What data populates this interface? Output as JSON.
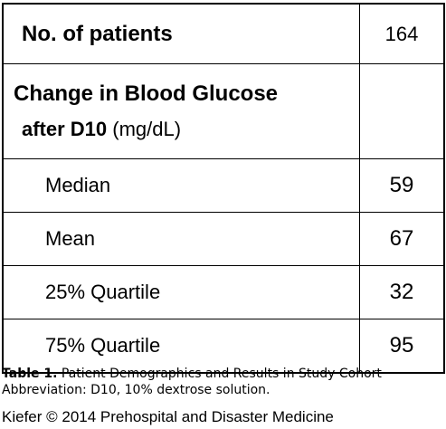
{
  "table": {
    "patients": {
      "label": "No. of patients",
      "value": "164"
    },
    "header": {
      "line1": "Change in Blood Glucose",
      "line2_bold": "after D10",
      "line2_unit": " (mg/dL)",
      "value": ""
    },
    "rows": [
      {
        "label": "Median",
        "value": "59"
      },
      {
        "label": "Mean",
        "value": "67"
      },
      {
        "label": "25% Quartile",
        "value": "32"
      },
      {
        "label": "75% Quartile",
        "value": "95"
      }
    ]
  },
  "caption": {
    "label": "Table 1.",
    "text": " Patient Demographics and Results in Study Cohort",
    "abbreviation": "Abbreviation: D10, 10% dextrose solution."
  },
  "credit": "Kiefer © 2014 Prehospital and Disaster Medicine"
}
